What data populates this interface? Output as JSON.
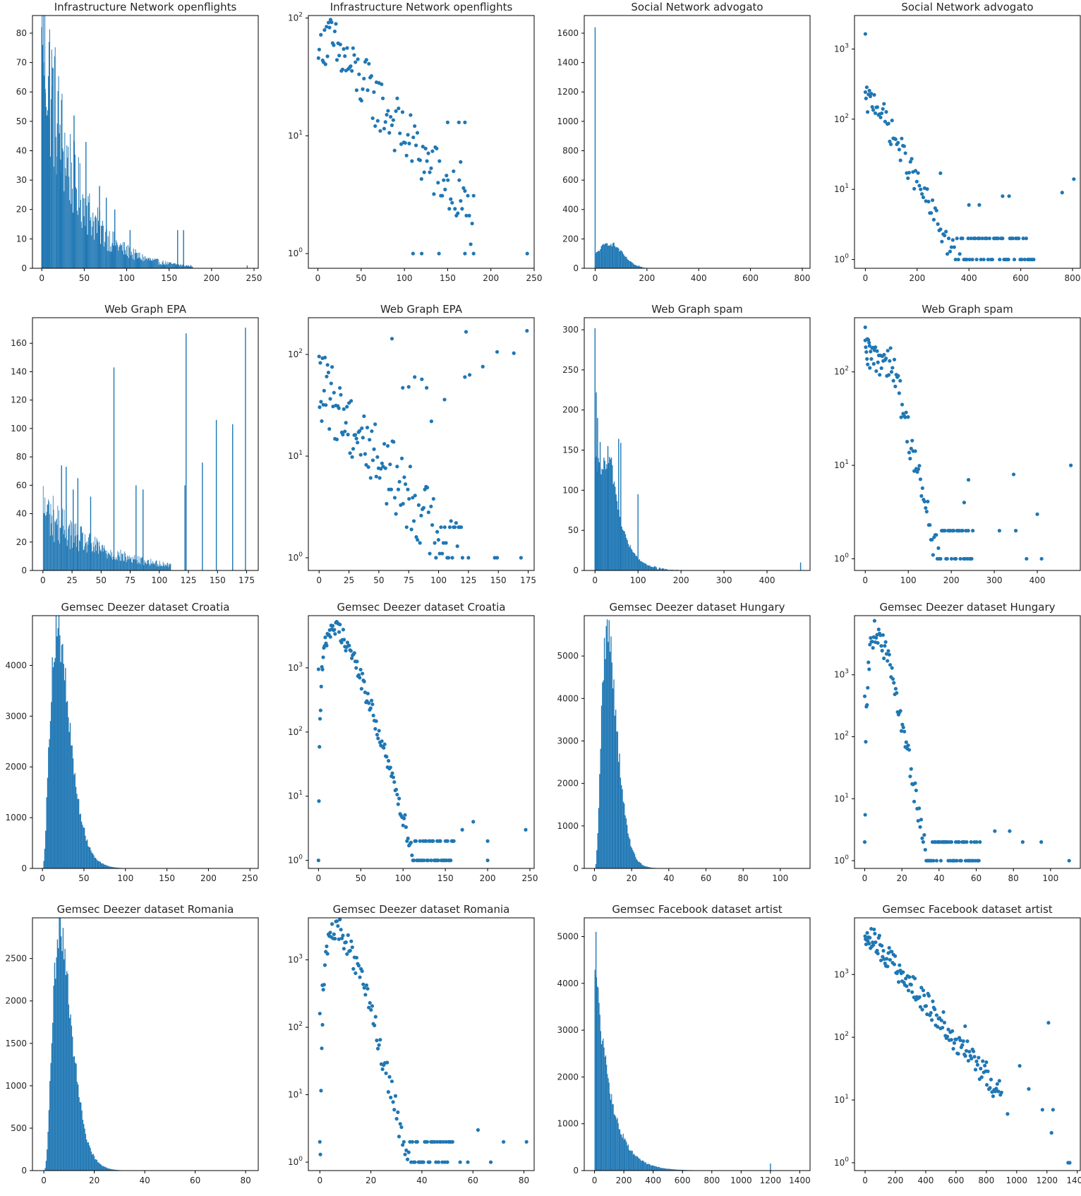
{
  "style": {
    "series_color": "#1f77b4",
    "axis_color": "#000000",
    "text_color": "#262626"
  },
  "chart_data": [
    {
      "type": "bar",
      "title": "Infrastructure Network openflights",
      "xlim": [
        -11,
        255
      ],
      "ylim": [
        0,
        86
      ],
      "xticks": [
        0,
        50,
        100,
        150,
        200,
        250
      ],
      "yticks": [
        0,
        10,
        20,
        30,
        40,
        50,
        60,
        70,
        80
      ],
      "log": false,
      "shape": "spiky_decay",
      "peak": 82,
      "decay": 38,
      "extent": 178,
      "spikes": [
        [
          0,
          82
        ],
        [
          1,
          76
        ],
        [
          2,
          70
        ],
        [
          4,
          61
        ],
        [
          6,
          52
        ],
        [
          9,
          51
        ],
        [
          12,
          62
        ],
        [
          18,
          38
        ],
        [
          22,
          37
        ],
        [
          38,
          52
        ],
        [
          52,
          43
        ],
        [
          68,
          28
        ],
        [
          76,
          24
        ],
        [
          86,
          20
        ],
        [
          104,
          13
        ],
        [
          160,
          13
        ],
        [
          167,
          13
        ],
        [
          242,
          1
        ]
      ]
    },
    {
      "type": "scatter",
      "title": "Infrastructure Network openflights",
      "xlim": [
        -11,
        250
      ],
      "ylim": [
        0.75,
        105
      ],
      "xticks": [
        0,
        50,
        100,
        150,
        200,
        250
      ],
      "yticks": [
        1,
        10,
        100
      ],
      "log": true,
      "shape": "decay",
      "peak": 82,
      "decay": 48,
      "count": 125,
      "xmax": 180,
      "noise": 0.25,
      "extra": [
        [
          242,
          1
        ],
        [
          170,
          1
        ],
        [
          180,
          1
        ],
        [
          150,
          13
        ],
        [
          163,
          13
        ],
        [
          170,
          13
        ],
        [
          165,
          6
        ],
        [
          140,
          1
        ],
        [
          120,
          1
        ],
        [
          110,
          1
        ]
      ]
    },
    {
      "type": "bar",
      "title": "Social Network advogato",
      "xlim": [
        -42,
        830
      ],
      "ylim": [
        0,
        1720
      ],
      "xticks": [
        0,
        200,
        400,
        600,
        800
      ],
      "yticks": [
        0,
        200,
        400,
        600,
        800,
        1000,
        1200,
        1400,
        1600
      ],
      "log": false,
      "shape": "hump",
      "peak": 170,
      "center": 55,
      "width": 50,
      "extent": 820,
      "tail": 0.08,
      "spikes": [
        [
          0,
          1640
        ],
        [
          800,
          4
        ]
      ]
    },
    {
      "type": "scatter",
      "title": "Social Network advogato",
      "xlim": [
        -42,
        830
      ],
      "ylim": [
        0.75,
        3000
      ],
      "xticks": [
        0,
        200,
        400,
        600,
        800
      ],
      "yticks": [
        1,
        10,
        100,
        1000
      ],
      "log": true,
      "shape": "hump_decay",
      "peak": 180,
      "center": 40,
      "decay": 60,
      "count": 130,
      "xmax": 650,
      "noise": 0.2,
      "extra": [
        [
          0,
          1640
        ],
        [
          760,
          9
        ],
        [
          805,
          14
        ],
        [
          530,
          8
        ],
        [
          555,
          8
        ],
        [
          440,
          6
        ],
        [
          400,
          6
        ],
        [
          290,
          17
        ]
      ]
    },
    {
      "type": "bar",
      "title": "Web Graph EPA",
      "xlim": [
        -9,
        185
      ],
      "ylim": [
        0,
        178
      ],
      "xticks": [
        0,
        25,
        50,
        75,
        100,
        125,
        150,
        175
      ],
      "yticks": [
        0,
        20,
        40,
        60,
        80,
        100,
        120,
        140,
        160
      ],
      "log": false,
      "shape": "spiky_decay",
      "peak": 45,
      "decay": 45,
      "extent": 110,
      "spikes": [
        [
          16,
          74
        ],
        [
          20,
          73
        ],
        [
          26,
          57
        ],
        [
          30,
          65
        ],
        [
          41,
          52
        ],
        [
          61,
          143
        ],
        [
          80,
          60
        ],
        [
          86,
          57
        ],
        [
          122,
          60
        ],
        [
          123,
          167
        ],
        [
          137,
          76
        ],
        [
          149,
          106
        ],
        [
          163,
          103
        ],
        [
          174,
          171
        ]
      ]
    },
    {
      "type": "scatter",
      "title": "Web Graph EPA",
      "xlim": [
        -9,
        180
      ],
      "ylim": [
        0.75,
        230
      ],
      "xticks": [
        0,
        25,
        50,
        75,
        100,
        125,
        150,
        175
      ],
      "yticks": [
        1,
        10,
        100
      ],
      "log": true,
      "shape": "decay",
      "peak": 50,
      "decay": 30,
      "count": 130,
      "xmax": 120,
      "noise": 0.35,
      "extra": [
        [
          61,
          143
        ],
        [
          123,
          167
        ],
        [
          174,
          171
        ],
        [
          149,
          106
        ],
        [
          163,
          103
        ],
        [
          137,
          76
        ],
        [
          126,
          63
        ],
        [
          122,
          60
        ],
        [
          105,
          36
        ],
        [
          90,
          47
        ],
        [
          94,
          22
        ],
        [
          80,
          60
        ],
        [
          86,
          57
        ],
        [
          70,
          47
        ],
        [
          75,
          48
        ],
        [
          125,
          1
        ],
        [
          147,
          1
        ],
        [
          149,
          1
        ],
        [
          169,
          1
        ]
      ]
    },
    {
      "type": "bar",
      "title": "Web Graph spam",
      "xlim": [
        -25,
        500
      ],
      "ylim": [
        0,
        315
      ],
      "xticks": [
        0,
        100,
        200,
        300,
        400
      ],
      "yticks": [
        0,
        50,
        100,
        150,
        200,
        250,
        300
      ],
      "log": false,
      "shape": "hump_decay",
      "peak": 130,
      "center": 40,
      "decay": 28,
      "extent": 480,
      "tail": 0.03,
      "spikes": [
        [
          0,
          302
        ],
        [
          3,
          222
        ],
        [
          6,
          190
        ],
        [
          12,
          160
        ],
        [
          55,
          164
        ],
        [
          60,
          159
        ],
        [
          30,
          155
        ],
        [
          100,
          95
        ],
        [
          478,
          10
        ]
      ]
    },
    {
      "type": "scatter",
      "title": "Web Graph spam",
      "xlim": [
        -25,
        500
      ],
      "ylim": [
        0.75,
        380
      ],
      "xticks": [
        0,
        100,
        200,
        300,
        400
      ],
      "yticks": [
        1,
        10,
        100
      ],
      "log": true,
      "shape": "hump_decay",
      "peak": 140,
      "center": 60,
      "decay": 22,
      "count": 110,
      "xmax": 250,
      "noise": 0.2,
      "extra": [
        [
          0,
          300
        ],
        [
          5,
          225
        ],
        [
          10,
          190
        ],
        [
          478,
          10
        ],
        [
          345,
          8
        ],
        [
          400,
          3
        ],
        [
          410,
          1
        ],
        [
          375,
          1
        ],
        [
          312,
          2
        ],
        [
          350,
          2
        ],
        [
          240,
          7
        ],
        [
          230,
          4
        ]
      ]
    },
    {
      "type": "bar",
      "title": "Gemsec Deezer dataset Croatia",
      "xlim": [
        -12,
        260
      ],
      "ylim": [
        0,
        4980
      ],
      "xticks": [
        0,
        50,
        100,
        150,
        200,
        250
      ],
      "yticks": [
        0,
        1000,
        2000,
        3000,
        4000
      ],
      "log": false,
      "shape": "gamma",
      "peak": 4700,
      "mode": 18,
      "k": 2.4,
      "extent": 250
    },
    {
      "type": "scatter",
      "title": "Gemsec Deezer dataset Croatia",
      "xlim": [
        -12,
        255
      ],
      "ylim": [
        0.75,
        6500
      ],
      "xticks": [
        0,
        50,
        100,
        150,
        200,
        250
      ],
      "yticks": [
        1,
        10,
        100,
        1000
      ],
      "log": true,
      "shape": "gamma",
      "peak": 4300,
      "mode": 18,
      "k": 2.4,
      "count": 150,
      "xmax": 160,
      "noise": 0.15,
      "extra": [
        [
          0,
          950
        ],
        [
          245,
          3
        ],
        [
          200,
          2
        ],
        [
          200,
          1
        ],
        [
          183,
          4
        ],
        [
          170,
          3
        ],
        [
          150,
          1
        ],
        [
          140,
          1
        ]
      ]
    },
    {
      "type": "bar",
      "title": "Gemsec Deezer dataset Hungary",
      "xlim": [
        -5.5,
        116
      ],
      "ylim": [
        0,
        5950
      ],
      "xticks": [
        0,
        20,
        40,
        60,
        80,
        100
      ],
      "yticks": [
        0,
        1000,
        2000,
        3000,
        4000,
        5000
      ],
      "log": false,
      "shape": "gamma",
      "peak": 5650,
      "mode": 7,
      "k": 3,
      "extent": 112
    },
    {
      "type": "scatter",
      "title": "Gemsec Deezer dataset Hungary",
      "xlim": [
        -5.5,
        116
      ],
      "ylim": [
        0.75,
        9000
      ],
      "xticks": [
        0,
        20,
        40,
        60,
        80,
        100
      ],
      "yticks": [
        1,
        10,
        100,
        1000
      ],
      "log": true,
      "shape": "gamma",
      "peak": 4800,
      "mode": 6,
      "k": 3,
      "count": 120,
      "xmax": 62,
      "noise": 0.2,
      "extra": [
        [
          0,
          450
        ],
        [
          110,
          1
        ],
        [
          95,
          2
        ],
        [
          85,
          2
        ],
        [
          78,
          3
        ],
        [
          70,
          3
        ]
      ]
    },
    {
      "type": "bar",
      "title": "Gemsec Deezer dataset Romania",
      "xlim": [
        -4.5,
        85
      ],
      "ylim": [
        0,
        2980
      ],
      "xticks": [
        0,
        20,
        40,
        60,
        80
      ],
      "yticks": [
        0,
        500,
        1000,
        1500,
        2000,
        2500
      ],
      "log": false,
      "shape": "gamma",
      "peak": 2840,
      "mode": 6.5,
      "k": 3,
      "extent": 82
    },
    {
      "type": "scatter",
      "title": "Gemsec Deezer dataset Romania",
      "xlim": [
        -4.5,
        84
      ],
      "ylim": [
        0.75,
        4200
      ],
      "xticks": [
        0,
        20,
        40,
        60,
        80
      ],
      "yticks": [
        1,
        10,
        100,
        1000
      ],
      "log": true,
      "shape": "gamma",
      "peak": 2850,
      "mode": 6.5,
      "k": 3,
      "count": 120,
      "xmax": 52,
      "noise": 0.2,
      "extra": [
        [
          0,
          160
        ],
        [
          1,
          420
        ],
        [
          81,
          2
        ],
        [
          72,
          2
        ],
        [
          67,
          1
        ],
        [
          62,
          3
        ],
        [
          58,
          1
        ],
        [
          55,
          1
        ]
      ]
    },
    {
      "type": "bar",
      "title": "Gemsec Facebook dataset artist",
      "xlim": [
        -70,
        1470
      ],
      "ylim": [
        0,
        5400
      ],
      "xticks": [
        0,
        200,
        400,
        600,
        800,
        1000,
        1200,
        1400
      ],
      "yticks": [
        0,
        1000,
        2000,
        3000,
        4000,
        5000
      ],
      "log": false,
      "shape": "decay",
      "peak": 4650,
      "decay": 105,
      "extent": 1250,
      "spikes": [
        [
          10,
          5100
        ],
        [
          1200,
          150
        ]
      ]
    },
    {
      "type": "scatter",
      "title": "Gemsec Facebook dataset artist",
      "xlim": [
        -70,
        1420
      ],
      "ylim": [
        0.75,
        8000
      ],
      "xticks": [
        0,
        200,
        400,
        600,
        800,
        1000,
        1200,
        1400
      ],
      "yticks": [
        1,
        10,
        100,
        1000
      ],
      "log": true,
      "shape": "decay",
      "peak": 5000,
      "decay": 150,
      "count": 150,
      "xmax": 900,
      "noise": 0.2,
      "extra": [
        [
          660,
          150
        ],
        [
          800,
          40
        ],
        [
          1020,
          35
        ],
        [
          1210,
          170
        ],
        [
          1080,
          15
        ],
        [
          1340,
          1
        ],
        [
          1350,
          1
        ],
        [
          1230,
          3
        ],
        [
          1240,
          7
        ],
        [
          1170,
          7
        ],
        [
          940,
          6
        ]
      ]
    }
  ]
}
